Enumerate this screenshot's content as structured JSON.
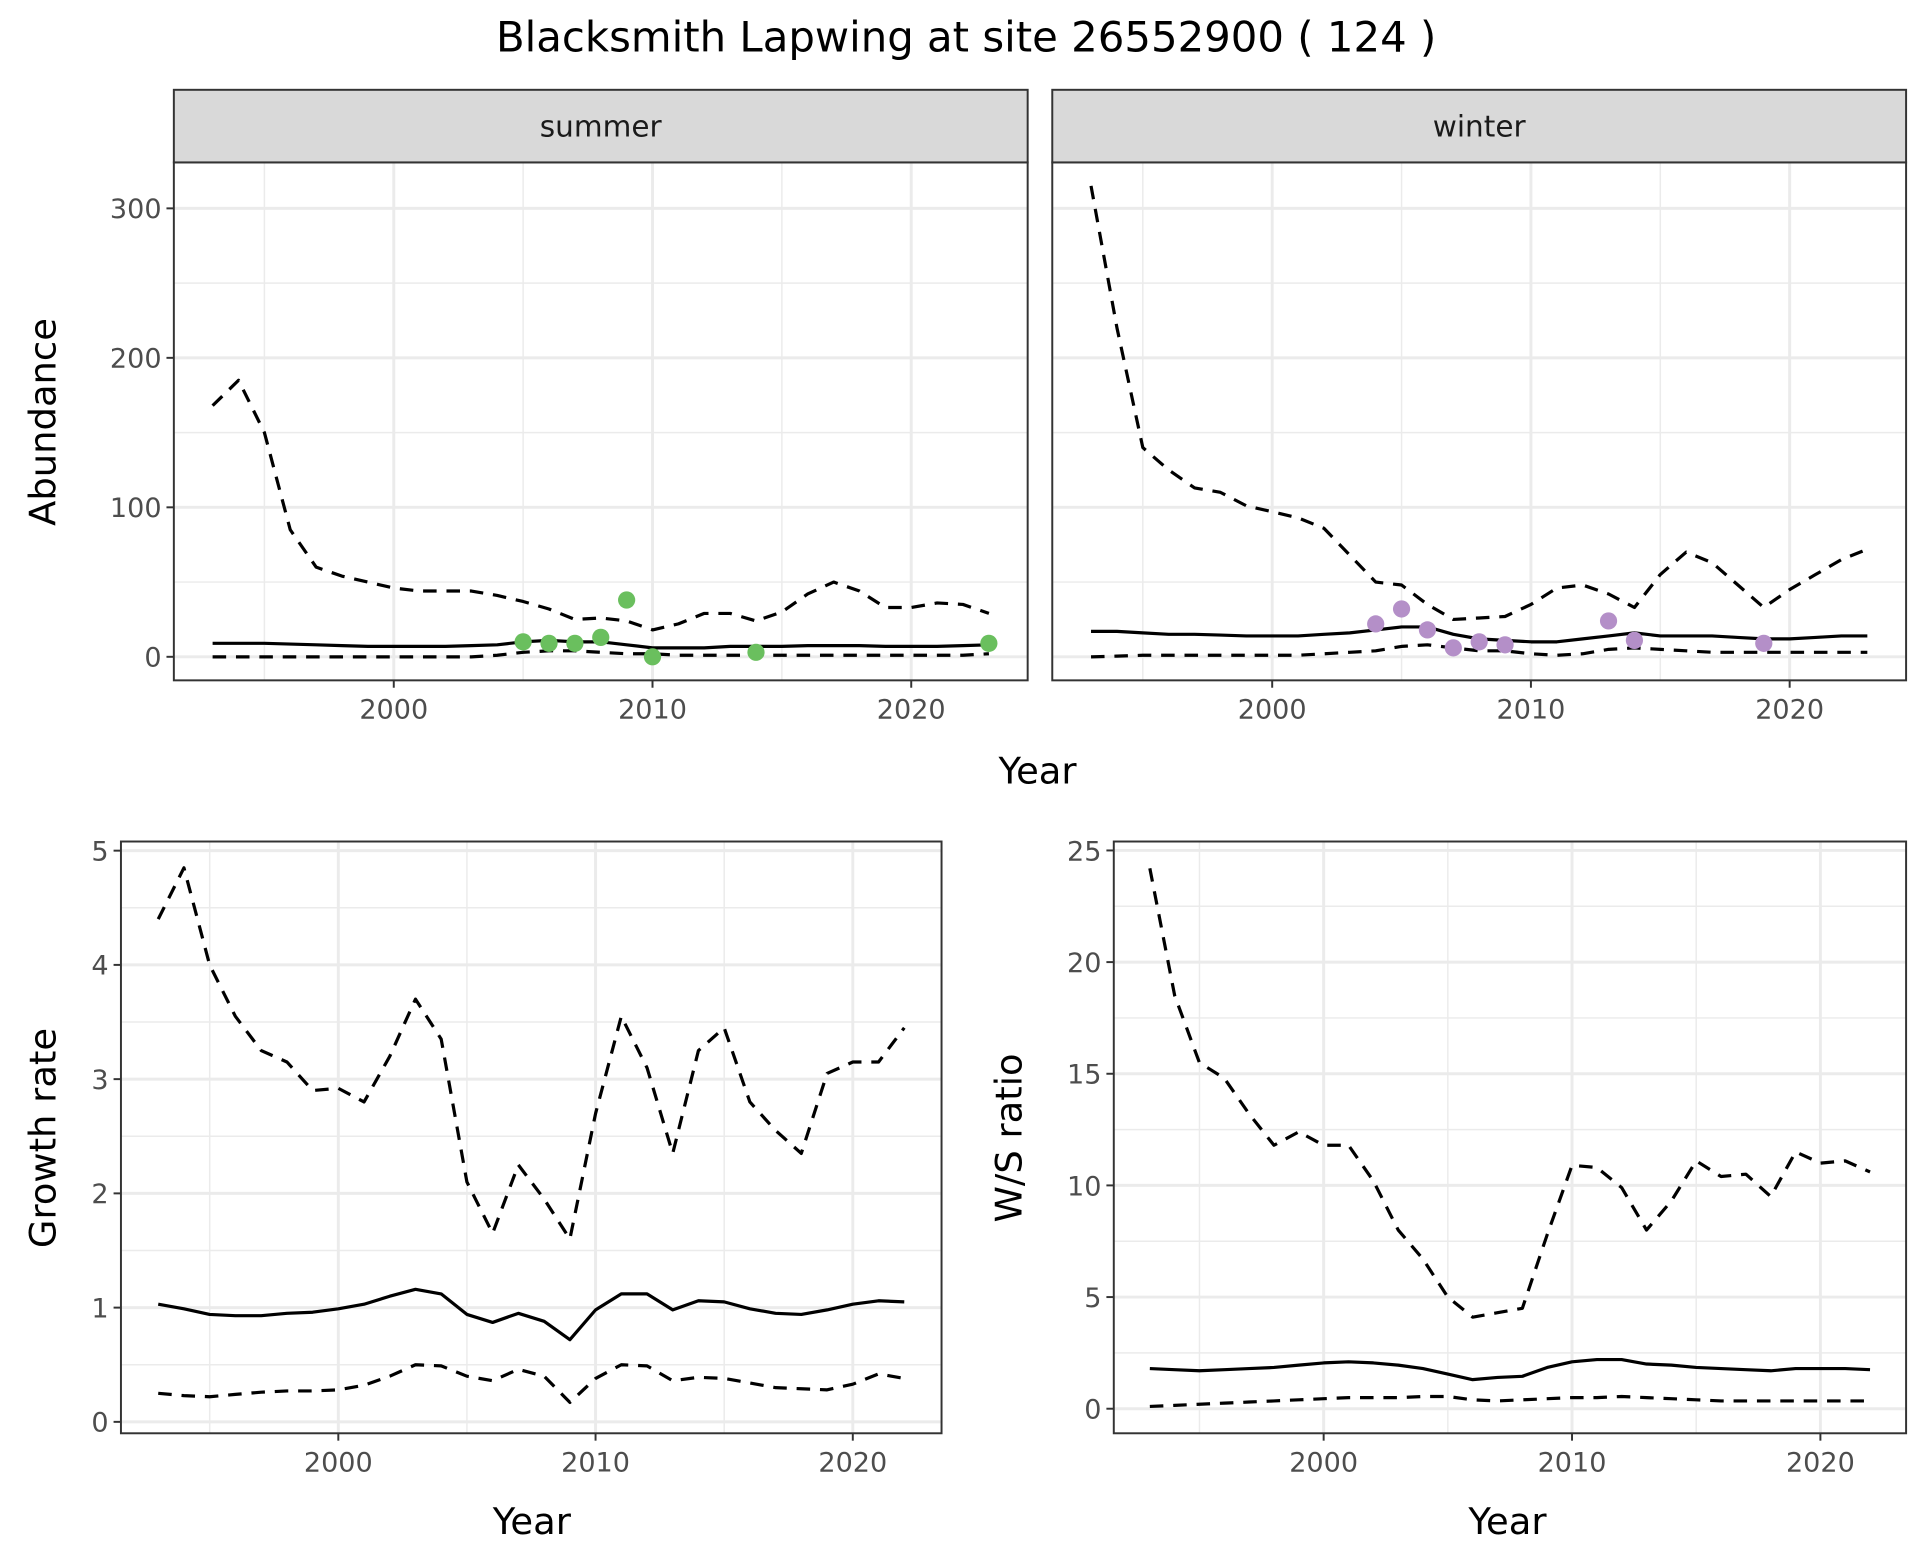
{
  "header": {
    "title": "Blacksmith Lapwing at site 26552900 ( 124 )"
  },
  "chart_data": [
    {
      "type": "line",
      "xlabel": "Year",
      "ylabel": "Abundance",
      "xlim": [
        1991.5,
        2024.5
      ],
      "ylim": [
        -15.75,
        330.75
      ],
      "xticks": [
        2000,
        2010,
        2020
      ],
      "yticks": [
        0,
        100,
        200,
        300
      ],
      "grid": true,
      "years": [
        1993,
        1994,
        1995,
        1996,
        1997,
        1998,
        1999,
        2000,
        2001,
        2002,
        2003,
        2004,
        2005,
        2006,
        2007,
        2008,
        2009,
        2010,
        2011,
        2012,
        2013,
        2014,
        2015,
        2016,
        2017,
        2018,
        2019,
        2020,
        2021,
        2022,
        2023
      ],
      "facets": [
        {
          "label": "summer",
          "point_color": "#6abf5e",
          "mean": [
            9,
            9,
            9,
            8.5,
            8,
            7.5,
            7,
            7,
            7,
            7,
            7.5,
            8,
            10,
            11,
            10,
            10,
            8,
            6,
            6,
            6,
            7,
            7,
            7,
            7.5,
            7.5,
            7.5,
            7,
            7,
            7,
            7.5,
            8
          ],
          "upper": [
            168,
            185,
            150,
            85,
            60,
            54,
            50,
            46,
            44,
            44,
            44,
            41,
            37,
            32,
            25,
            26,
            24,
            18,
            22,
            29,
            29,
            24,
            30,
            42,
            50,
            44,
            33,
            33,
            36,
            35,
            29
          ],
          "lower": [
            0,
            0,
            0,
            0,
            0,
            0,
            0,
            0,
            0,
            0,
            0,
            1,
            3,
            4,
            4,
            3,
            2,
            2,
            1,
            1,
            1,
            1,
            1,
            1,
            1,
            1,
            1,
            1,
            1,
            1,
            2
          ],
          "points": [
            [
              2005,
              10
            ],
            [
              2006,
              9
            ],
            [
              2007,
              9
            ],
            [
              2008,
              13
            ],
            [
              2009,
              38
            ],
            [
              2010,
              0
            ],
            [
              2014,
              3
            ],
            [
              2023,
              9
            ]
          ]
        },
        {
          "label": "winter",
          "point_color": "#b48fc8",
          "mean": [
            17,
            17,
            16,
            15,
            15,
            14.5,
            14,
            14,
            14,
            15,
            16,
            18,
            20,
            20,
            15,
            12,
            11,
            10,
            10,
            12,
            14,
            16,
            14,
            14,
            14,
            13,
            12,
            12,
            13,
            14,
            14
          ],
          "upper": [
            315,
            220,
            140,
            125,
            113,
            110,
            101,
            97,
            93,
            86,
            68,
            50,
            48,
            35,
            25,
            26,
            27,
            35,
            46,
            48,
            42,
            33,
            55,
            70,
            63,
            48,
            33,
            45,
            55,
            65,
            72
          ],
          "lower": [
            0,
            0.5,
            1,
            1,
            1,
            1,
            1,
            1,
            1,
            2,
            3,
            4,
            7,
            8,
            6,
            4,
            4,
            2,
            1,
            2,
            5,
            6,
            5,
            4,
            3,
            3,
            3,
            3,
            3,
            3,
            3
          ],
          "points": [
            [
              2004,
              22
            ],
            [
              2005,
              32
            ],
            [
              2006,
              18
            ],
            [
              2007,
              6
            ],
            [
              2008,
              10
            ],
            [
              2009,
              8
            ],
            [
              2013,
              24
            ],
            [
              2014,
              11
            ],
            [
              2019,
              9
            ]
          ]
        }
      ]
    },
    {
      "type": "line",
      "xlabel": "Year",
      "ylabel": "Growth rate",
      "xlim": [
        1991.55,
        2023.45
      ],
      "ylim": [
        -0.1,
        5.08
      ],
      "xticks": [
        2000,
        2010,
        2020
      ],
      "yticks": [
        0,
        1,
        2,
        3,
        4,
        5
      ],
      "grid": true,
      "years": [
        1993,
        1994,
        1995,
        1996,
        1997,
        1998,
        1999,
        2000,
        2001,
        2002,
        2003,
        2004,
        2005,
        2006,
        2007,
        2008,
        2009,
        2010,
        2011,
        2012,
        2013,
        2014,
        2015,
        2016,
        2017,
        2018,
        2019,
        2020,
        2021,
        2022
      ],
      "mean": [
        1.03,
        0.99,
        0.94,
        0.93,
        0.93,
        0.95,
        0.96,
        0.99,
        1.03,
        1.1,
        1.16,
        1.12,
        0.94,
        0.87,
        0.95,
        0.88,
        0.72,
        0.98,
        1.12,
        1.12,
        0.98,
        1.06,
        1.05,
        0.99,
        0.95,
        0.94,
        0.98,
        1.03,
        1.06,
        1.05
      ],
      "upper": [
        4.4,
        4.85,
        4.0,
        3.55,
        3.25,
        3.15,
        2.9,
        2.92,
        2.8,
        3.2,
        3.7,
        3.35,
        2.1,
        1.65,
        2.25,
        1.95,
        1.6,
        2.7,
        3.55,
        3.1,
        2.35,
        3.25,
        3.45,
        2.8,
        2.55,
        2.35,
        3.05,
        3.15,
        3.15,
        3.45
      ],
      "lower": [
        0.25,
        0.23,
        0.22,
        0.24,
        0.26,
        0.27,
        0.27,
        0.28,
        0.32,
        0.4,
        0.5,
        0.49,
        0.4,
        0.36,
        0.46,
        0.4,
        0.17,
        0.38,
        0.5,
        0.49,
        0.36,
        0.39,
        0.38,
        0.34,
        0.3,
        0.29,
        0.28,
        0.33,
        0.42,
        0.38
      ]
    },
    {
      "type": "line",
      "xlabel": "Year",
      "ylabel": "W/S ratio",
      "xlim": [
        1991.55,
        2023.45
      ],
      "ylim": [
        -1.1,
        25.4
      ],
      "xticks": [
        2000,
        2010,
        2020
      ],
      "yticks": [
        0,
        5,
        10,
        15,
        20,
        25
      ],
      "grid": true,
      "years": [
        1993,
        1994,
        1995,
        1996,
        1997,
        1998,
        1999,
        2000,
        2001,
        2002,
        2003,
        2004,
        2005,
        2006,
        2007,
        2008,
        2009,
        2010,
        2011,
        2012,
        2013,
        2014,
        2015,
        2016,
        2017,
        2018,
        2019,
        2020,
        2021,
        2022
      ],
      "mean": [
        1.8,
        1.75,
        1.7,
        1.75,
        1.8,
        1.85,
        1.95,
        2.05,
        2.1,
        2.05,
        1.95,
        1.8,
        1.55,
        1.3,
        1.4,
        1.45,
        1.85,
        2.1,
        2.2,
        2.2,
        2.0,
        1.95,
        1.85,
        1.8,
        1.75,
        1.7,
        1.8,
        1.8,
        1.8,
        1.75
      ],
      "upper": [
        24.2,
        18.5,
        15.5,
        14.8,
        13.2,
        11.8,
        12.4,
        11.8,
        11.8,
        10.2,
        8,
        6.7,
        5,
        4.1,
        4.3,
        4.5,
        7.8,
        10.9,
        10.8,
        9.9,
        8,
        9.3,
        11.1,
        10.4,
        10.5,
        9.5,
        11.5,
        11,
        11.1,
        10.6
      ],
      "lower": [
        0.1,
        0.15,
        0.2,
        0.25,
        0.3,
        0.35,
        0.4,
        0.45,
        0.5,
        0.5,
        0.5,
        0.55,
        0.55,
        0.4,
        0.35,
        0.4,
        0.45,
        0.5,
        0.5,
        0.55,
        0.5,
        0.45,
        0.4,
        0.35,
        0.35,
        0.35,
        0.35,
        0.35,
        0.35,
        0.35
      ]
    }
  ]
}
